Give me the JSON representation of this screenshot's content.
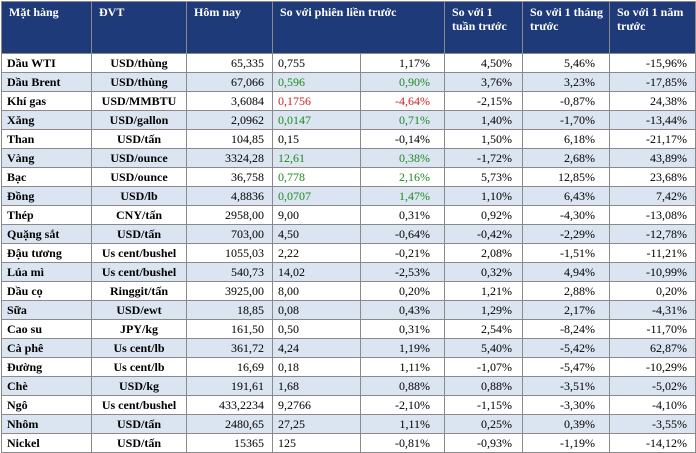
{
  "headers": {
    "item": "Mặt hàng",
    "unit": "ĐVT",
    "today": "Hôm nay",
    "prev_session": "So với phiên liền trước",
    "week": "So với 1 tuần trước",
    "month": "So với 1 tháng trước",
    "year": "So với 1 năm trước"
  },
  "colors": {
    "header_bg": "#1f3a78",
    "header_text": "#ffffff",
    "row_alt_bg": "#dbe5f1",
    "up_green": "#1e8a1e",
    "down_red": "#d11f1f"
  },
  "rows": [
    {
      "name": "Dầu WTI",
      "unit": "USD/thùng",
      "today": "65,335",
      "chg": "0,755",
      "pct": "1,17%",
      "week": "4,50%",
      "month": "5,46%",
      "year": "-15,96%",
      "color": ""
    },
    {
      "name": "Dầu Brent",
      "unit": "USD/thùng",
      "today": "67,066",
      "chg": "0,596",
      "pct": "0,90%",
      "week": "3,76%",
      "month": "3,23%",
      "year": "-17,85%",
      "color": "pos"
    },
    {
      "name": "Khí gas",
      "unit": "USD/MMBTU",
      "today": "3,6084",
      "chg": "0,1756",
      "pct": "-4,64%",
      "week": "-2,15%",
      "month": "-0,87%",
      "year": "24,38%",
      "color": "neg"
    },
    {
      "name": "Xăng",
      "unit": "USD/gallon",
      "today": "2,0962",
      "chg": "0,0147",
      "pct": "0,71%",
      "week": "1,40%",
      "month": "-1,70%",
      "year": "-13,44%",
      "color": "pos"
    },
    {
      "name": "Than",
      "unit": "USD/tấn",
      "today": "104,85",
      "chg": "0,15",
      "pct": "-0,14%",
      "week": "1,50%",
      "month": "6,18%",
      "year": "-21,17%",
      "color": ""
    },
    {
      "name": "Vàng",
      "unit": "USD/ounce",
      "today": "3324,28",
      "chg": "12,61",
      "pct": "0,38%",
      "week": "-1,72%",
      "month": "2,68%",
      "year": "43,89%",
      "color": "pos"
    },
    {
      "name": "Bạc",
      "unit": "USD/ounce",
      "today": "36,758",
      "chg": "0,778",
      "pct": "2,16%",
      "week": "5,73%",
      "month": "12,85%",
      "year": "23,68%",
      "color": "pos"
    },
    {
      "name": "Đồng",
      "unit": "USD/lb",
      "today": "4,8836",
      "chg": "0,0707",
      "pct": "1,47%",
      "week": "1,10%",
      "month": "6,43%",
      "year": "7,42%",
      "color": "pos"
    },
    {
      "name": "Thép",
      "unit": "CNY/tấn",
      "today": "2958,00",
      "chg": "9,00",
      "pct": "0,31%",
      "week": "0,92%",
      "month": "-4,30%",
      "year": "-13,08%",
      "color": ""
    },
    {
      "name": "Quặng sắt",
      "unit": "USD/tấn",
      "today": "703,00",
      "chg": "4,50",
      "pct": "-0,64%",
      "week": "-0,42%",
      "month": "-2,29%",
      "year": "-12,78%",
      "color": ""
    },
    {
      "name": "Đậu tương",
      "unit": "Us cent/bushel",
      "today": "1055,03",
      "chg": "2,22",
      "pct": "-0,21%",
      "week": "2,08%",
      "month": "-1,51%",
      "year": "-11,21%",
      "color": ""
    },
    {
      "name": "Lúa mì",
      "unit": "Us cent/bushel",
      "today": "540,73",
      "chg": "14,02",
      "pct": "-2,53%",
      "week": "0,32%",
      "month": "4,94%",
      "year": "-10,99%",
      "color": ""
    },
    {
      "name": "Dầu cọ",
      "unit": "Ringgit/tấn",
      "today": "3925,00",
      "chg": "8,00",
      "pct": "0,20%",
      "week": "1,21%",
      "month": "2,88%",
      "year": "0,20%",
      "color": ""
    },
    {
      "name": "Sữa",
      "unit": "USD/ewt",
      "today": "18,85",
      "chg": "0,08",
      "pct": "0,43%",
      "week": "1,29%",
      "month": "2,17%",
      "year": "-4,31%",
      "color": ""
    },
    {
      "name": "Cao su",
      "unit": "JPY/kg",
      "today": "161,50",
      "chg": "0,50",
      "pct": "0,31%",
      "week": "2,54%",
      "month": "-8,24%",
      "year": "-11,70%",
      "color": ""
    },
    {
      "name": "Cà phê",
      "unit": "Us cent/lb",
      "today": "361,72",
      "chg": "4,24",
      "pct": "1,19%",
      "week": "5,40%",
      "month": "-5,42%",
      "year": "62,87%",
      "color": ""
    },
    {
      "name": "Đường",
      "unit": "Us cent/lb",
      "today": "16,69",
      "chg": "0,18",
      "pct": "1,11%",
      "week": "-1,07%",
      "month": "-5,47%",
      "year": "-10,29%",
      "color": ""
    },
    {
      "name": "Chè",
      "unit": "USD/kg",
      "today": "191,61",
      "chg": "1,68",
      "pct": "0,88%",
      "week": "0,88%",
      "month": "-3,51%",
      "year": "-5,02%",
      "color": ""
    },
    {
      "name": "Ngô",
      "unit": "Us cent/bushel",
      "today": "433,2234",
      "chg": "9,2766",
      "pct": "-2,10%",
      "week": "-1,15%",
      "month": "-3,30%",
      "year": "-4,10%",
      "color": ""
    },
    {
      "name": "Nhôm",
      "unit": "USD/tấn",
      "today": "2480,65",
      "chg": "27,25",
      "pct": "1,11%",
      "week": "0,25%",
      "month": "0,39%",
      "year": "-3,55%",
      "color": ""
    },
    {
      "name": "Nickel",
      "unit": "USD/tấn",
      "today": "15365",
      "chg": "125",
      "pct": "-0,81%",
      "week": "-0,93%",
      "month": "-1,19%",
      "year": "-14,12%",
      "color": ""
    }
  ]
}
